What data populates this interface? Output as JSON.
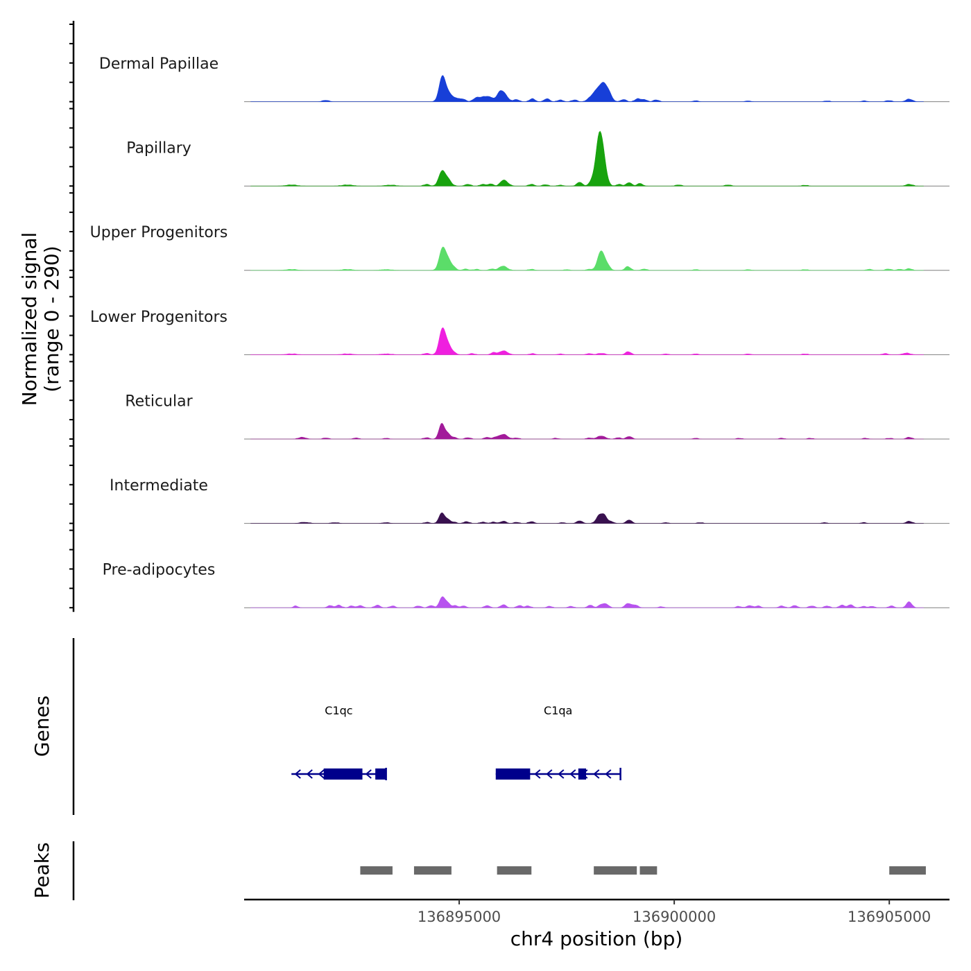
{
  "chart_data": {
    "type": "area",
    "genome_track": true,
    "y_axis_title_line1": "Normalized signal",
    "y_axis_title_line2": "(range 0 - 290)",
    "y_range": [
      0,
      290
    ],
    "x_axis_title": "chr4 position (bp)",
    "x_ticks": [
      136895000,
      136900000,
      136905000
    ],
    "x_tick_labels": [
      "136895000",
      "136900000",
      "136905000"
    ],
    "x_range": [
      136890000,
      136906400
    ],
    "signal_baseline_color": "#7f7f7f",
    "tracks": [
      {
        "name": "Dermal Papillae",
        "color": "#173fd8",
        "peaks": [
          [
            136891900,
            0.015,
            70
          ],
          [
            136894600,
            0.27,
            70
          ],
          [
            136894720,
            0.11,
            80
          ],
          [
            136894860,
            0.035,
            60
          ],
          [
            136894980,
            0.03,
            60
          ],
          [
            136895100,
            0.025,
            60
          ],
          [
            136895400,
            0.045,
            70
          ],
          [
            136895550,
            0.045,
            70
          ],
          [
            136895700,
            0.055,
            80
          ],
          [
            136895930,
            0.065,
            70
          ],
          [
            136896030,
            0.095,
            90
          ],
          [
            136896330,
            0.025,
            60
          ],
          [
            136896700,
            0.035,
            60
          ],
          [
            136897040,
            0.035,
            60
          ],
          [
            136897350,
            0.02,
            60
          ],
          [
            136897680,
            0.02,
            60
          ],
          [
            136898020,
            0.03,
            60
          ],
          [
            136898170,
            0.11,
            80
          ],
          [
            136898340,
            0.205,
            85
          ],
          [
            136898480,
            0.09,
            70
          ],
          [
            136898820,
            0.025,
            60
          ],
          [
            136899150,
            0.035,
            60
          ],
          [
            136899300,
            0.025,
            60
          ],
          [
            136899580,
            0.02,
            60
          ],
          [
            136900500,
            0.01,
            60
          ],
          [
            136901720,
            0.008,
            60
          ],
          [
            136903550,
            0.008,
            60
          ],
          [
            136904420,
            0.008,
            60
          ],
          [
            136904990,
            0.012,
            60
          ],
          [
            136905460,
            0.03,
            70
          ]
        ]
      },
      {
        "name": "Papillary",
        "color": "#18a30e",
        "peaks": [
          [
            136891100,
            0.012,
            120
          ],
          [
            136892400,
            0.012,
            120
          ],
          [
            136893400,
            0.01,
            120
          ],
          [
            136894240,
            0.02,
            60
          ],
          [
            136894590,
            0.155,
            70
          ],
          [
            136894720,
            0.09,
            80
          ],
          [
            136895200,
            0.02,
            60
          ],
          [
            136895550,
            0.02,
            60
          ],
          [
            136895730,
            0.025,
            60
          ],
          [
            136896000,
            0.03,
            60
          ],
          [
            136896070,
            0.05,
            80
          ],
          [
            136896680,
            0.02,
            60
          ],
          [
            136897000,
            0.015,
            60
          ],
          [
            136897350,
            0.01,
            60
          ],
          [
            136897800,
            0.045,
            60
          ],
          [
            136898110,
            0.08,
            70
          ],
          [
            136898230,
            0.38,
            65
          ],
          [
            136898320,
            0.42,
            70
          ],
          [
            136898420,
            0.06,
            60
          ],
          [
            136898720,
            0.02,
            60
          ],
          [
            136898950,
            0.04,
            60
          ],
          [
            136899200,
            0.03,
            60
          ],
          [
            136900100,
            0.012,
            60
          ],
          [
            136901250,
            0.012,
            60
          ],
          [
            136903040,
            0.008,
            60
          ],
          [
            136905460,
            0.02,
            70
          ]
        ]
      },
      {
        "name": "Upper Progenitors",
        "color": "#5bdd69",
        "peaks": [
          [
            136891100,
            0.01,
            120
          ],
          [
            136892400,
            0.01,
            120
          ],
          [
            136893300,
            0.008,
            120
          ],
          [
            136894600,
            0.22,
            70
          ],
          [
            136894720,
            0.14,
            80
          ],
          [
            136894870,
            0.03,
            60
          ],
          [
            136895150,
            0.015,
            60
          ],
          [
            136895400,
            0.012,
            60
          ],
          [
            136895750,
            0.015,
            60
          ],
          [
            136896020,
            0.05,
            90
          ],
          [
            136896680,
            0.012,
            60
          ],
          [
            136897500,
            0.008,
            60
          ],
          [
            136898020,
            0.012,
            60
          ],
          [
            136898300,
            0.23,
            80
          ],
          [
            136898450,
            0.05,
            60
          ],
          [
            136898920,
            0.045,
            60
          ],
          [
            136899300,
            0.015,
            60
          ],
          [
            136900500,
            0.008,
            60
          ],
          [
            136901720,
            0.008,
            60
          ],
          [
            136903040,
            0.008,
            60
          ],
          [
            136904530,
            0.012,
            60
          ],
          [
            136904980,
            0.015,
            60
          ],
          [
            136905240,
            0.012,
            60
          ],
          [
            136905460,
            0.02,
            60
          ]
        ]
      },
      {
        "name": "Lower Progenitors",
        "color": "#ef1fdf",
        "peaks": [
          [
            136891100,
            0.008,
            120
          ],
          [
            136892400,
            0.008,
            120
          ],
          [
            136893300,
            0.008,
            120
          ],
          [
            136894240,
            0.015,
            60
          ],
          [
            136894600,
            0.27,
            70
          ],
          [
            136894720,
            0.13,
            80
          ],
          [
            136894870,
            0.02,
            60
          ],
          [
            136895300,
            0.012,
            60
          ],
          [
            136895800,
            0.025,
            60
          ],
          [
            136896030,
            0.045,
            90
          ],
          [
            136896700,
            0.012,
            60
          ],
          [
            136897350,
            0.008,
            60
          ],
          [
            136898020,
            0.012,
            60
          ],
          [
            136898300,
            0.015,
            80
          ],
          [
            136898930,
            0.035,
            60
          ],
          [
            136899800,
            0.008,
            60
          ],
          [
            136900500,
            0.008,
            60
          ],
          [
            136901720,
            0.008,
            60
          ],
          [
            136903040,
            0.008,
            60
          ],
          [
            136904900,
            0.012,
            60
          ],
          [
            136905400,
            0.018,
            80
          ]
        ]
      },
      {
        "name": "Reticular",
        "color": "#a21a9a",
        "peaks": [
          [
            136891350,
            0.02,
            80
          ],
          [
            136891900,
            0.012,
            60
          ],
          [
            136892600,
            0.012,
            60
          ],
          [
            136893300,
            0.008,
            60
          ],
          [
            136894240,
            0.015,
            60
          ],
          [
            136894590,
            0.18,
            60
          ],
          [
            136894720,
            0.07,
            60
          ],
          [
            136894870,
            0.02,
            60
          ],
          [
            136895200,
            0.015,
            60
          ],
          [
            136895650,
            0.02,
            60
          ],
          [
            136895850,
            0.02,
            60
          ],
          [
            136896030,
            0.055,
            90
          ],
          [
            136896330,
            0.012,
            60
          ],
          [
            136897250,
            0.008,
            60
          ],
          [
            136898020,
            0.012,
            60
          ],
          [
            136898300,
            0.035,
            90
          ],
          [
            136898700,
            0.015,
            60
          ],
          [
            136898950,
            0.03,
            60
          ],
          [
            136900500,
            0.008,
            60
          ],
          [
            136901520,
            0.008,
            60
          ],
          [
            136902500,
            0.008,
            60
          ],
          [
            136903170,
            0.008,
            60
          ],
          [
            136904450,
            0.008,
            60
          ],
          [
            136905000,
            0.008,
            60
          ],
          [
            136905460,
            0.02,
            60
          ]
        ]
      },
      {
        "name": "Intermediate",
        "color": "#39114f",
        "peaks": [
          [
            136891400,
            0.012,
            100
          ],
          [
            136892100,
            0.008,
            80
          ],
          [
            136893300,
            0.008,
            80
          ],
          [
            136894250,
            0.012,
            60
          ],
          [
            136894590,
            0.12,
            60
          ],
          [
            136894720,
            0.05,
            60
          ],
          [
            136894870,
            0.015,
            60
          ],
          [
            136895170,
            0.02,
            60
          ],
          [
            136895550,
            0.015,
            60
          ],
          [
            136895800,
            0.015,
            60
          ],
          [
            136896030,
            0.025,
            60
          ],
          [
            136896330,
            0.012,
            60
          ],
          [
            136896680,
            0.02,
            60
          ],
          [
            136897400,
            0.008,
            60
          ],
          [
            136897800,
            0.03,
            60
          ],
          [
            136898260,
            0.095,
            70
          ],
          [
            136898380,
            0.08,
            60
          ],
          [
            136898530,
            0.02,
            60
          ],
          [
            136898950,
            0.04,
            60
          ],
          [
            136899800,
            0.008,
            60
          ],
          [
            136900600,
            0.008,
            60
          ],
          [
            136903500,
            0.008,
            60
          ],
          [
            136904400,
            0.008,
            60
          ],
          [
            136905460,
            0.025,
            60
          ]
        ]
      },
      {
        "name": "Pre-adipocytes",
        "color": "#b752ef",
        "peaks": [
          [
            136891200,
            0.02,
            50
          ],
          [
            136892000,
            0.025,
            60
          ],
          [
            136892200,
            0.03,
            60
          ],
          [
            136892500,
            0.02,
            60
          ],
          [
            136892700,
            0.025,
            60
          ],
          [
            136893100,
            0.03,
            60
          ],
          [
            136893450,
            0.02,
            60
          ],
          [
            136894050,
            0.02,
            60
          ],
          [
            136894350,
            0.025,
            60
          ],
          [
            136894600,
            0.12,
            60
          ],
          [
            136894720,
            0.06,
            60
          ],
          [
            136894900,
            0.025,
            60
          ],
          [
            136895100,
            0.02,
            60
          ],
          [
            136895650,
            0.025,
            60
          ],
          [
            136896030,
            0.035,
            60
          ],
          [
            136896400,
            0.025,
            60
          ],
          [
            136896600,
            0.02,
            60
          ],
          [
            136897100,
            0.015,
            60
          ],
          [
            136897600,
            0.015,
            60
          ],
          [
            136898050,
            0.03,
            60
          ],
          [
            136898300,
            0.035,
            60
          ],
          [
            136898420,
            0.04,
            60
          ],
          [
            136898930,
            0.05,
            70
          ],
          [
            136899100,
            0.03,
            60
          ],
          [
            136899700,
            0.01,
            60
          ],
          [
            136901500,
            0.015,
            60
          ],
          [
            136901750,
            0.025,
            60
          ],
          [
            136901950,
            0.02,
            60
          ],
          [
            136902500,
            0.02,
            60
          ],
          [
            136902800,
            0.025,
            60
          ],
          [
            136903200,
            0.02,
            60
          ],
          [
            136903550,
            0.02,
            60
          ],
          [
            136903900,
            0.03,
            60
          ],
          [
            136904100,
            0.035,
            60
          ],
          [
            136904400,
            0.015,
            60
          ],
          [
            136904600,
            0.015,
            60
          ],
          [
            136905050,
            0.02,
            60
          ],
          [
            136905460,
            0.07,
            60
          ]
        ]
      }
    ],
    "genes_track_title": "Genes",
    "gene_color": "#00008b",
    "genes": [
      {
        "name": "C1qc",
        "strand": "-",
        "start": 136891100,
        "end": 136893300,
        "exons": [
          [
            136891850,
            136892750
          ],
          [
            136893050,
            136893300
          ]
        ]
      },
      {
        "name": "C1qa",
        "strand": "-",
        "start": 136895850,
        "end": 136898750,
        "exons": [
          [
            136895850,
            136896650
          ],
          [
            136897770,
            136897950
          ]
        ]
      }
    ],
    "peaks_track_title": "Peaks",
    "peak_color": "#696969",
    "peak_regions": [
      [
        136892700,
        136893450
      ],
      [
        136893950,
        136894820
      ],
      [
        136895880,
        136896680
      ],
      [
        136898130,
        136899130
      ],
      [
        136899200,
        136899600
      ],
      [
        136905000,
        136905850
      ]
    ]
  }
}
